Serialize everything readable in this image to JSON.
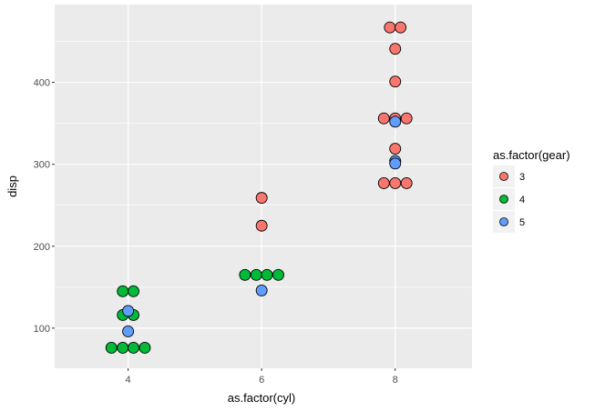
{
  "chart_data": {
    "type": "scatter",
    "subtype": "dotplot",
    "xlabel": "as.factor(cyl)",
    "ylabel": "disp",
    "xticks": [
      {
        "value": 4,
        "label": "4"
      },
      {
        "value": 6,
        "label": "6"
      },
      {
        "value": 8,
        "label": "8"
      }
    ],
    "yticks": [
      {
        "value": 100,
        "label": "100"
      },
      {
        "value": 200,
        "label": "200"
      },
      {
        "value": 300,
        "label": "300"
      },
      {
        "value": 400,
        "label": "400"
      }
    ],
    "xlim": [
      2.9,
      9.15
    ],
    "ylim": [
      51,
      495
    ],
    "grid": true,
    "legend": {
      "title": "as.factor(gear)",
      "placement": "right",
      "entries": [
        {
          "label": "3",
          "color": "#F8766D"
        },
        {
          "label": "4",
          "color": "#00BA38"
        },
        {
          "label": "5",
          "color": "#619CFF"
        }
      ]
    },
    "series": [
      {
        "name": "3",
        "color": "#F8766D",
        "points": [
          [
            7.92,
            467
          ],
          [
            8.08,
            467
          ],
          [
            8,
            441
          ],
          [
            8,
            401
          ],
          [
            7.83,
            356
          ],
          [
            8,
            356
          ],
          [
            8.17,
            356
          ],
          [
            8,
            319
          ],
          [
            7.83,
            277
          ],
          [
            8,
            277
          ],
          [
            8.17,
            277
          ],
          [
            6,
            259
          ],
          [
            6,
            225
          ]
        ]
      },
      {
        "name": "4",
        "color": "#00BA38",
        "points": [
          [
            5.75,
            165
          ],
          [
            5.92,
            165
          ],
          [
            6.08,
            165
          ],
          [
            6.25,
            165
          ],
          [
            3.92,
            145
          ],
          [
            4.08,
            145
          ],
          [
            3.92,
            116
          ],
          [
            4.08,
            116
          ],
          [
            3.75,
            76
          ],
          [
            3.92,
            76
          ],
          [
            4.08,
            76
          ],
          [
            4.25,
            76
          ]
        ]
      },
      {
        "name": "5",
        "color": "#619CFF",
        "points": [
          [
            8,
            352
          ],
          [
            8,
            304
          ],
          [
            8,
            301
          ],
          [
            6,
            146
          ],
          [
            4,
            121
          ],
          [
            4,
            96
          ]
        ]
      }
    ]
  }
}
